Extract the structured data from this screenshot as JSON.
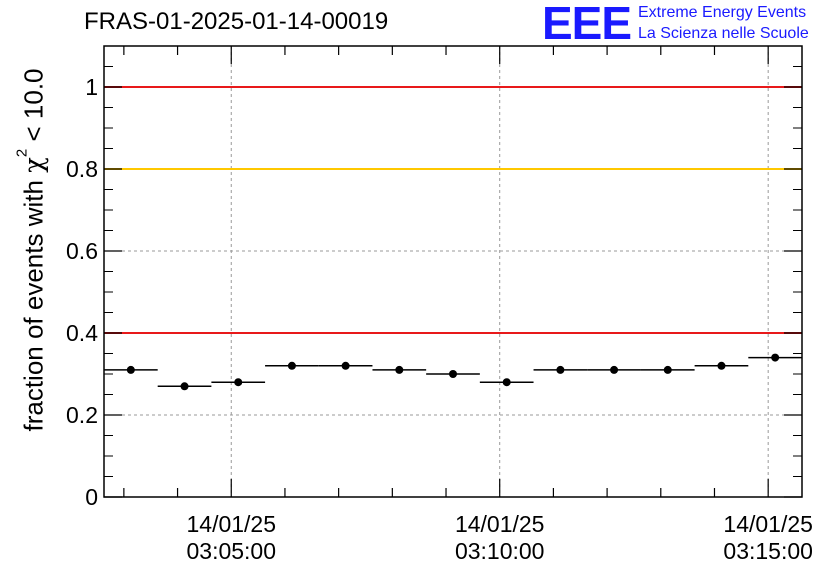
{
  "title": "FRAS-01-2025-01-14-00019",
  "logo": {
    "mark": "EEE",
    "line1": "Extreme Energy Events",
    "line2": "La Scienza nelle Scuole"
  },
  "colors": {
    "threshold_red": "#e8191a",
    "threshold_yellow": "#ffc800",
    "points": "#000000",
    "grid": "#999999"
  },
  "chart_data": {
    "type": "scatter",
    "title": "FRAS-01-2025-01-14-00019",
    "ylabel_prefix": "fraction of events with ",
    "ylabel_symbol": "χ",
    "ylabel_superscript": "2",
    "ylabel_suffix": " < 10.0",
    "xlabel": "",
    "ylim": [
      0,
      1.1
    ],
    "yticks": [
      "0",
      "0.2",
      "0.4",
      "0.6",
      "0.8",
      "1"
    ],
    "xlim_minutes": [
      2.63,
      15.63
    ],
    "xtick_labels": [
      {
        "minute": 5,
        "date": "14/01/25",
        "time": "03:05:00"
      },
      {
        "minute": 10,
        "date": "14/01/25",
        "time": "03:10:00"
      },
      {
        "minute": 15,
        "date": "14/01/25",
        "time": "03:15:00"
      }
    ],
    "grid": true,
    "bin_width_minutes": 1,
    "thresholds": [
      {
        "value": 1.0,
        "color": "#e8191a"
      },
      {
        "value": 0.8,
        "color": "#ffc800"
      },
      {
        "value": 0.4,
        "color": "#e8191a"
      }
    ],
    "series": [
      {
        "x_minutes": [
          3.13,
          4.13,
          5.13,
          6.13,
          7.13,
          8.13,
          9.13,
          10.13,
          11.13,
          12.13,
          13.13,
          14.13,
          15.13
        ],
        "values": [
          0.31,
          0.27,
          0.28,
          0.32,
          0.32,
          0.31,
          0.3,
          0.28,
          0.31,
          0.31,
          0.31,
          0.32,
          0.34
        ]
      }
    ]
  }
}
